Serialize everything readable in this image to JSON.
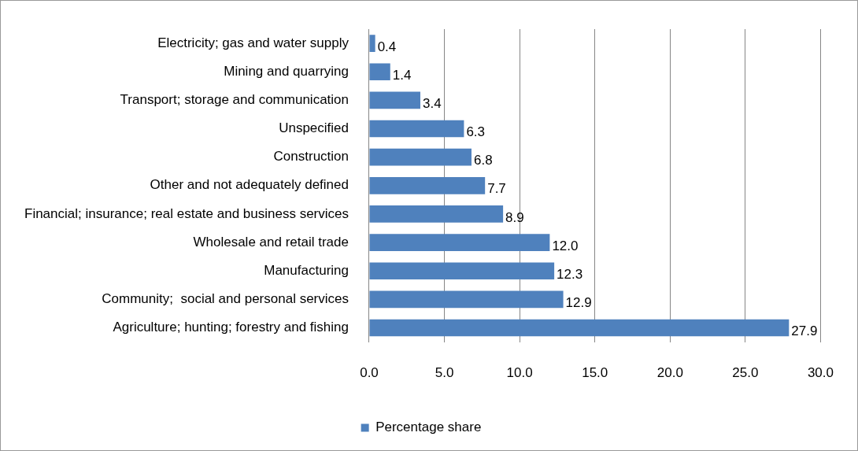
{
  "chart_data": {
    "type": "bar",
    "orientation": "horizontal",
    "categories": [
      "Electricity; gas and water supply",
      "Mining and quarrying",
      "Transport; storage and communication",
      "Unspecified",
      "Construction",
      "Other and not adequately defined",
      "Financial; insurance; real estate and business services",
      "Wholesale and retail trade",
      "Manufacturing",
      "Community;  social and personal services",
      "Agriculture; hunting; forestry and fishing"
    ],
    "series": [
      {
        "name": "Percentage share",
        "color": "#4f81bd",
        "values": [
          0.4,
          1.4,
          3.4,
          6.3,
          6.8,
          7.7,
          8.9,
          12.0,
          12.3,
          12.9,
          27.9
        ],
        "value_labels": [
          "0.4",
          "1.4",
          "3.4",
          "6.3",
          "6.8",
          "7.7",
          "8.9",
          "12.0",
          "12.3",
          "12.9",
          "27.9"
        ]
      }
    ],
    "xlim": [
      0,
      30
    ],
    "xticks": [
      {
        "value": 0,
        "label": "0.0"
      },
      {
        "value": 5,
        "label": "5.0"
      },
      {
        "value": 10,
        "label": "10.0"
      },
      {
        "value": 15,
        "label": "15.0"
      },
      {
        "value": 20,
        "label": "20.0"
      },
      {
        "value": 25,
        "label": "25.0"
      },
      {
        "value": 30,
        "label": "30.0"
      }
    ],
    "grid": "x",
    "legend": "bottom"
  }
}
